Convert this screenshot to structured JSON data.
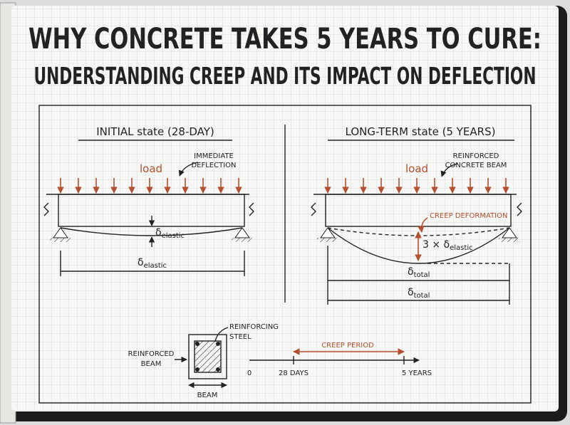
{
  "title": [
    "WHY CONCRETE TAKES 5 YEARS TO CURE:",
    "UNDERSTANDING CREEP AND ITS IMPACT ON DEFLECTION"
  ],
  "initial": {
    "heading": "INITIAL state (28-DAY)",
    "load": "load",
    "note": [
      "IMMEDIATE",
      "DEFLECTION"
    ],
    "deflection_label": {
      "symbol": "δ",
      "sub": "elastic"
    },
    "span_label": {
      "symbol": "δ",
      "sub": "elastic"
    }
  },
  "long_term": {
    "heading": "LONG-TERM state (5 YEARS)",
    "load": "load",
    "note": [
      "REINFORCED",
      "CONCRETE BEAM"
    ],
    "creep_label": "CREEP DEFORMATION",
    "multiplier": {
      "prefix": "3 ×",
      "symbol": "δ",
      "sub": "elastic"
    },
    "total_label_1": {
      "symbol": "δ",
      "sub": "total"
    },
    "total_label_2": {
      "symbol": "δ",
      "sub": "total"
    }
  },
  "section": {
    "steel_label": [
      "REINFORCING",
      "STEEL"
    ],
    "beam_label": [
      "REINFORCED",
      "BEAM"
    ],
    "width_label": "BEAM"
  },
  "timeline": {
    "period": "CREEP PERIOD",
    "start": "0",
    "mid": "28 DAYS",
    "end": "5 YEARS"
  }
}
